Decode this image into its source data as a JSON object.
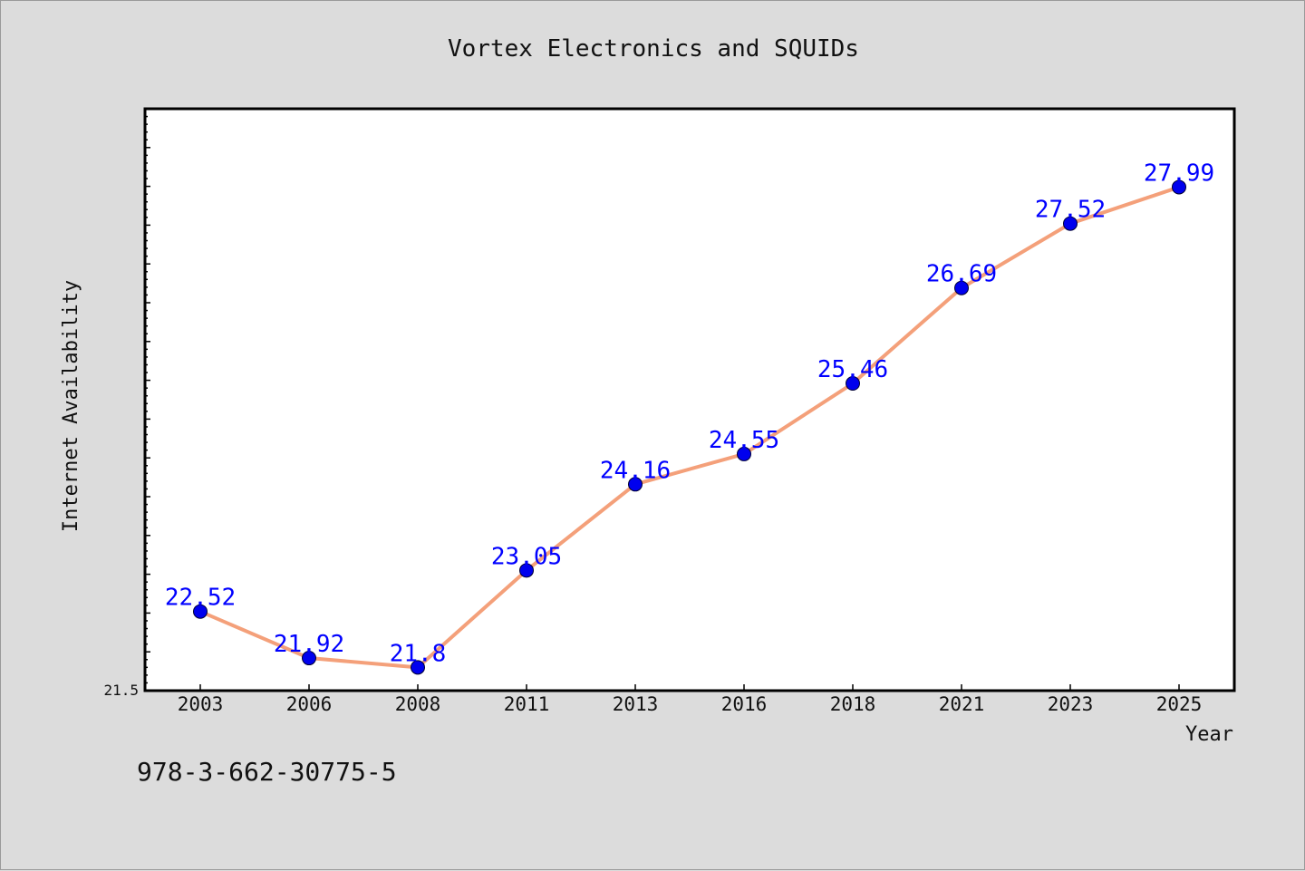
{
  "chart_data": {
    "type": "line",
    "title": "Vortex Electronics and SQUIDs",
    "xlabel": "Year",
    "ylabel": "Internet Availability",
    "categories": [
      "2003",
      "2006",
      "2008",
      "2011",
      "2013",
      "2016",
      "2018",
      "2021",
      "2023",
      "2025"
    ],
    "series": [
      {
        "values": [
          22.52,
          21.92,
          21.8,
          23.05,
          24.16,
          24.55,
          25.46,
          26.69,
          27.52,
          27.99
        ],
        "labels": [
          "22.52",
          "21.92",
          "21.8",
          "23.05",
          "24.16",
          "24.55",
          "25.46",
          "26.69",
          "27.52",
          "27.99"
        ],
        "line_color": "#f4a07a",
        "marker_color": "#0000ee",
        "label_color": "#0000ff"
      }
    ],
    "ylim": [
      21.5,
      29.0
    ],
    "y_min_label": "21.5",
    "grid": false,
    "legend": "none"
  },
  "footer": {
    "isbn": "978-3-662-30775-5"
  }
}
